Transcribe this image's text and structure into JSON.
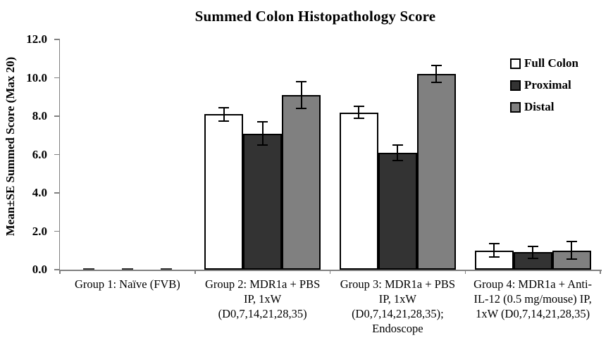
{
  "chart_data": {
    "type": "bar",
    "title": "Summed Colon Histopathology Score",
    "ylabel": "Mean±SE Summed Score (Max 20)",
    "xlabel": "",
    "ylim": [
      0,
      12
    ],
    "ytick_step": 2,
    "ytick_decimals": 1,
    "grid": false,
    "legend_position": "right",
    "axis_color": "#808080",
    "error_bar_color": "#000000",
    "bar_border_color": "#000000",
    "categories": [
      "Group 1: Naïve (FVB)",
      "Group 2: MDR1a + PBS\nIP, 1xW\n(D0,7,14,21,28,35)",
      "Group 3: MDR1a + PBS\nIP, 1xW\n(D0,7,14,21,28,35);\nEndoscope",
      "Group 4: MDR1a + Anti-\nIL-12 (0.5 mg/mouse) IP,\n1xW (D0,7,14,21,28,35)"
    ],
    "series": [
      {
        "name": "Full Colon",
        "color": "#ffffff",
        "values": [
          0,
          8.1,
          8.2,
          1.0
        ],
        "errors": [
          0,
          0.35,
          0.3,
          0.35
        ]
      },
      {
        "name": "Proximal",
        "color": "#333333",
        "values": [
          0,
          7.1,
          6.1,
          0.9
        ],
        "errors": [
          0,
          0.6,
          0.4,
          0.3
        ]
      },
      {
        "name": "Distal",
        "color": "#808080",
        "values": [
          0,
          9.1,
          10.2,
          1.0
        ],
        "errors": [
          0,
          0.7,
          0.45,
          0.45
        ]
      }
    ]
  }
}
